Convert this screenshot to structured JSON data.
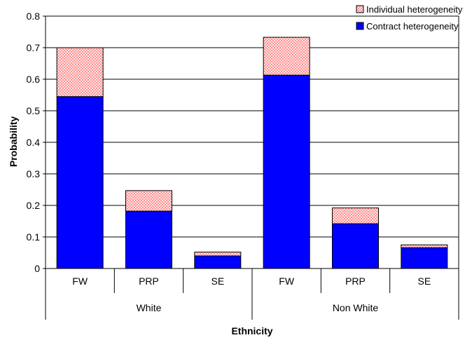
{
  "chart_data": {
    "type": "bar",
    "stacked": true,
    "groups": [
      {
        "label": "White",
        "categories": [
          "FW",
          "PRP",
          "SE"
        ]
      },
      {
        "label": "Non White",
        "categories": [
          "FW",
          "PRP",
          "SE"
        ]
      }
    ],
    "series": [
      {
        "name": "Contract heterogeneity",
        "color": "#0000FF",
        "values": [
          0.545,
          0.182,
          0.04,
          0.613,
          0.142,
          0.066
        ]
      },
      {
        "name": "Individual heterogeneity",
        "color": "#FF9999",
        "pattern": "crosshatch",
        "values": [
          0.155,
          0.065,
          0.012,
          0.12,
          0.05,
          0.009
        ]
      }
    ],
    "xlabel": "Ethnicity",
    "ylabel": "Probability",
    "ylim": [
      0,
      0.8
    ],
    "yticks": [
      "0",
      "0.1",
      "0.2",
      "0.3",
      "0.4",
      "0.5",
      "0.6",
      "0.7",
      "0.8"
    ],
    "grid": true,
    "legend_position": "top-right"
  }
}
